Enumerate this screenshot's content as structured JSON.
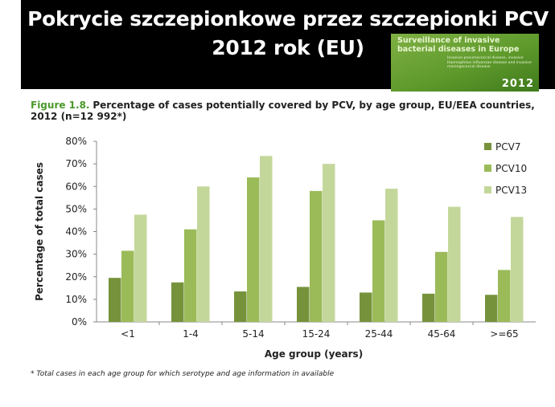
{
  "header": {
    "title_line1": "Pokrycie szczepionkowe przez szczepionki PCV",
    "title_line2": "2012 rok (EU)"
  },
  "report_cover": {
    "title": "Surveillance of invasive bacterial diseases in Europe",
    "subtitle": "Invasive pneumococcal disease, invasive Haemophilus influenzae disease and invasive meningococcal disease",
    "year": "2012"
  },
  "figure": {
    "number": "Figure 1.8.",
    "caption": "Percentage of cases potentially covered by PCV, by age group, EU/EEA countries, 2012 (n=12 992*)",
    "footnote": "* Total cases in each age group for which serotype and age information in available"
  },
  "chart_data": {
    "type": "bar",
    "categories": [
      "<1",
      "1-4",
      "5-14",
      "15-24",
      "25-44",
      "45-64",
      ">=65"
    ],
    "series": [
      {
        "name": "PCV7",
        "color": "#76933c",
        "values": [
          19.5,
          17.5,
          13.5,
          15.5,
          13,
          12.5,
          12
        ]
      },
      {
        "name": "PCV10",
        "color": "#9bbb59",
        "values": [
          31.5,
          41,
          64,
          58,
          45,
          31,
          23
        ]
      },
      {
        "name": "PCV13",
        "color": "#c4d79b",
        "values": [
          47.5,
          60,
          73.5,
          70,
          59,
          51,
          46.5
        ]
      }
    ],
    "xlabel": "Age group (years)",
    "ylabel": "Percentage of total cases",
    "ylim": [
      0,
      80
    ],
    "yticks": [
      "0%",
      "10%",
      "20%",
      "30%",
      "40%",
      "50%",
      "60%",
      "70%",
      "80%"
    ],
    "legend_position": "right",
    "grid": false
  }
}
